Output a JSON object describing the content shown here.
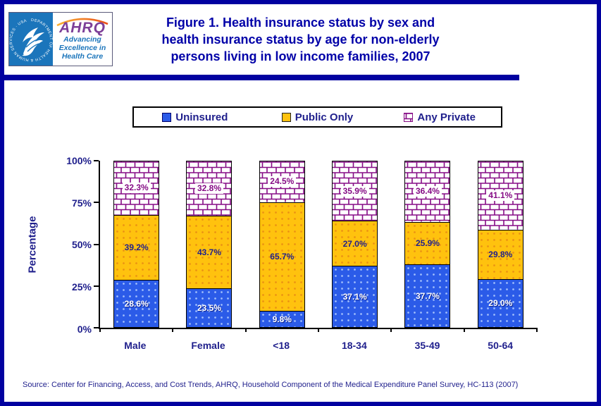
{
  "header": {
    "title_lines": [
      "Figure 1. Health insurance status by sex and",
      "health insurance status by age for non-elderly",
      "persons living in low income families, 2007"
    ],
    "logo": {
      "acronym": "AHRQ",
      "tagline_lines": [
        "Advancing",
        "Excellence in",
        "Health Care"
      ],
      "seal_text": "DEPARTMENT OF HEALTH & HUMAN SERVICES · USA"
    }
  },
  "colors": {
    "navy": "#0101A0",
    "title-navy": "#0000A8",
    "text-navy": "#1F1F8C",
    "brick": "#850C85",
    "logo-blue": "#1B75BB",
    "logo-purple": "#7D3F98",
    "arc-orange": "#E8772E"
  },
  "chart_data": {
    "type": "bar",
    "stacked": true,
    "categories": [
      "Male",
      "Female",
      "<18",
      "18-34",
      "35-49",
      "50-64"
    ],
    "series": [
      {
        "name": "Uninsured",
        "key": "uninsured",
        "color": "#2B5BE8",
        "pattern": "dots",
        "values": [
          28.6,
          23.5,
          9.8,
          37.1,
          37.7,
          29.0
        ]
      },
      {
        "name": "Public Only",
        "key": "public",
        "color": "#FFC20E",
        "pattern": "dots",
        "values": [
          39.2,
          43.7,
          65.7,
          27.0,
          25.9,
          29.8
        ]
      },
      {
        "name": "Any Private",
        "key": "private",
        "color": "#850C85",
        "pattern": "brick",
        "values": [
          32.3,
          32.8,
          24.5,
          35.9,
          36.4,
          41.1
        ]
      }
    ],
    "ylabel": "Percentage",
    "y_tick_labels": [
      "100%",
      "75%",
      "50%",
      "25%",
      "0%"
    ],
    "ylim": [
      0,
      100
    ],
    "grid": false,
    "legend_position": "top",
    "value_label_format": "0.0%"
  },
  "footer": {
    "source": "Source: Center for Financing, Access, and Cost Trends, AHRQ, Household Component of the Medical Expenditure Panel Survey, HC-113 (2007)"
  }
}
